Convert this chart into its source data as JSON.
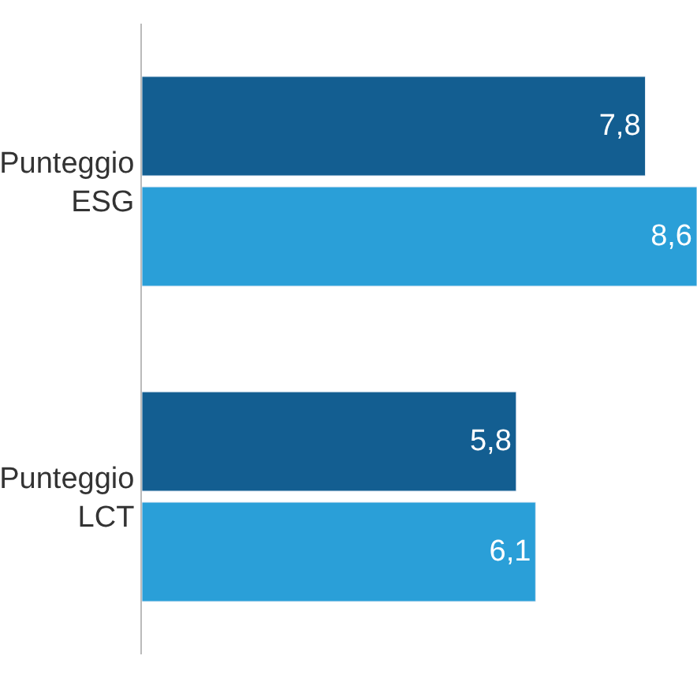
{
  "chart_data": {
    "type": "bar",
    "orientation": "horizontal",
    "categories": [
      "Punteggio\nESG",
      "Punteggio\nLCT"
    ],
    "series": [
      {
        "color": "#135e91",
        "values": [
          7.8,
          5.8
        ],
        "value_labels": [
          "7,8",
          "5,8"
        ]
      },
      {
        "color": "#2a9fd8",
        "values": [
          8.6,
          6.1
        ],
        "value_labels": [
          "8,6",
          "6,1"
        ]
      }
    ],
    "xlim": [
      0,
      8.6
    ],
    "legend": false
  }
}
